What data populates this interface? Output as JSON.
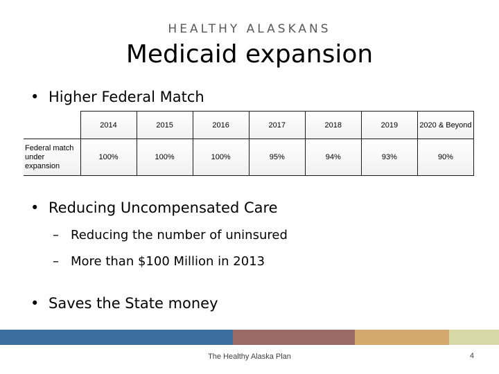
{
  "slide": {
    "kicker": "HEALTHY ALASKANS",
    "title": "Medicaid expansion",
    "bullet_char": "•",
    "dash_char": "–"
  },
  "bullets": {
    "b1": "Higher Federal Match",
    "b2": "Reducing Uncompensated Care",
    "b2_sub1": "Reducing the number of uninsured",
    "b2_sub2": "More than $100 Million in 2013",
    "b3": "Saves the State money"
  },
  "table": {
    "row_label": "Federal match under expansion",
    "years": [
      "2014",
      "2015",
      "2016",
      "2017",
      "2018",
      "2019",
      "2020 & Beyond"
    ],
    "values": [
      "100%",
      "100%",
      "100%",
      "95%",
      "94%",
      "93%",
      "90%"
    ]
  },
  "footer_bar": {
    "colors": [
      "#3c6fa0",
      "#9a6b66",
      "#d3a96e",
      "#d8d7a6"
    ]
  },
  "footer": {
    "text": "The Healthy Alaska Plan",
    "page_number": "4"
  }
}
